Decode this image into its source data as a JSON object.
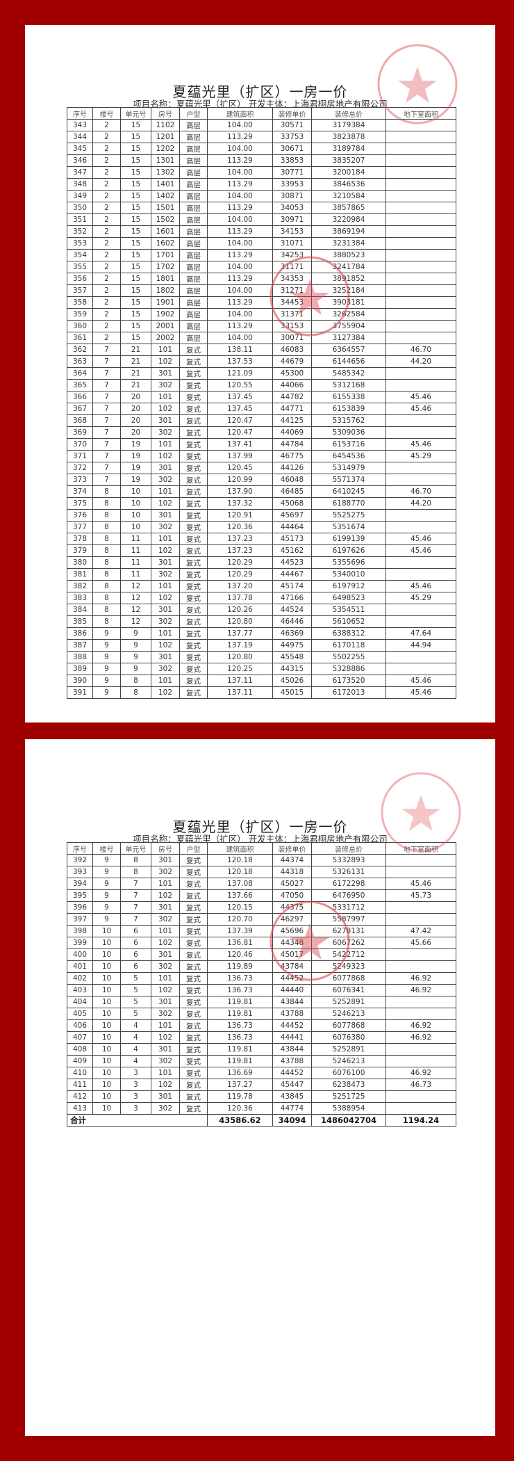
{
  "pages": [
    {
      "title": "夏蕴光里（扩区）一房一价",
      "subtitle": "项目名称：夏蕴光里（扩区）   开发主体：上海君栩房地产有限公司",
      "headers": [
        "序号",
        "楼号",
        "单元号",
        "房号",
        "户型",
        "建筑面积",
        "装修单价",
        "装修总价",
        "地下室面积"
      ],
      "rows": [
        [
          "343",
          "2",
          "15",
          "1102",
          "高层",
          "104.00",
          "30571",
          "3179384",
          ""
        ],
        [
          "344",
          "2",
          "15",
          "1201",
          "高层",
          "113.29",
          "33753",
          "3823878",
          ""
        ],
        [
          "345",
          "2",
          "15",
          "1202",
          "高层",
          "104.00",
          "30671",
          "3189784",
          ""
        ],
        [
          "346",
          "2",
          "15",
          "1301",
          "高层",
          "113.29",
          "33853",
          "3835207",
          ""
        ],
        [
          "347",
          "2",
          "15",
          "1302",
          "高层",
          "104.00",
          "30771",
          "3200184",
          ""
        ],
        [
          "348",
          "2",
          "15",
          "1401",
          "高层",
          "113.29",
          "33953",
          "3846536",
          ""
        ],
        [
          "349",
          "2",
          "15",
          "1402",
          "高层",
          "104.00",
          "30871",
          "3210584",
          ""
        ],
        [
          "350",
          "2",
          "15",
          "1501",
          "高层",
          "113.29",
          "34053",
          "3857865",
          ""
        ],
        [
          "351",
          "2",
          "15",
          "1502",
          "高层",
          "104.00",
          "30971",
          "3220984",
          ""
        ],
        [
          "352",
          "2",
          "15",
          "1601",
          "高层",
          "113.29",
          "34153",
          "3869194",
          ""
        ],
        [
          "353",
          "2",
          "15",
          "1602",
          "高层",
          "104.00",
          "31071",
          "3231384",
          ""
        ],
        [
          "354",
          "2",
          "15",
          "1701",
          "高层",
          "113.29",
          "34253",
          "3880523",
          ""
        ],
        [
          "355",
          "2",
          "15",
          "1702",
          "高层",
          "104.00",
          "31171",
          "3241784",
          ""
        ],
        [
          "356",
          "2",
          "15",
          "1801",
          "高层",
          "113.29",
          "34353",
          "3891852",
          ""
        ],
        [
          "357",
          "2",
          "15",
          "1802",
          "高层",
          "104.00",
          "31271",
          "3252184",
          ""
        ],
        [
          "358",
          "2",
          "15",
          "1901",
          "高层",
          "113.29",
          "34453",
          "3903181",
          ""
        ],
        [
          "359",
          "2",
          "15",
          "1902",
          "高层",
          "104.00",
          "31371",
          "3262584",
          ""
        ],
        [
          "360",
          "2",
          "15",
          "2001",
          "高层",
          "113.29",
          "33153",
          "3755904",
          ""
        ],
        [
          "361",
          "2",
          "15",
          "2002",
          "高层",
          "104.00",
          "30071",
          "3127384",
          ""
        ],
        [
          "362",
          "7",
          "21",
          "101",
          "复式",
          "138.11",
          "46083",
          "6364557",
          "46.70"
        ],
        [
          "363",
          "7",
          "21",
          "102",
          "复式",
          "137.53",
          "44679",
          "6144656",
          "44.20"
        ],
        [
          "364",
          "7",
          "21",
          "301",
          "复式",
          "121.09",
          "45300",
          "5485342",
          ""
        ],
        [
          "365",
          "7",
          "21",
          "302",
          "复式",
          "120.55",
          "44066",
          "5312168",
          ""
        ],
        [
          "366",
          "7",
          "20",
          "101",
          "复式",
          "137.45",
          "44782",
          "6155338",
          "45.46"
        ],
        [
          "367",
          "7",
          "20",
          "102",
          "复式",
          "137.45",
          "44771",
          "6153839",
          "45.46"
        ],
        [
          "368",
          "7",
          "20",
          "301",
          "复式",
          "120.47",
          "44125",
          "5315762",
          ""
        ],
        [
          "369",
          "7",
          "20",
          "302",
          "复式",
          "120.47",
          "44069",
          "5309036",
          ""
        ],
        [
          "370",
          "7",
          "19",
          "101",
          "复式",
          "137.41",
          "44784",
          "6153716",
          "45.46"
        ],
        [
          "371",
          "7",
          "19",
          "102",
          "复式",
          "137.99",
          "46775",
          "6454536",
          "45.29"
        ],
        [
          "372",
          "7",
          "19",
          "301",
          "复式",
          "120.45",
          "44126",
          "5314979",
          ""
        ],
        [
          "373",
          "7",
          "19",
          "302",
          "复式",
          "120.99",
          "46048",
          "5571374",
          ""
        ],
        [
          "374",
          "8",
          "10",
          "101",
          "复式",
          "137.90",
          "46485",
          "6410245",
          "46.70"
        ],
        [
          "375",
          "8",
          "10",
          "102",
          "复式",
          "137.32",
          "45068",
          "6188770",
          "44.20"
        ],
        [
          "376",
          "8",
          "10",
          "301",
          "复式",
          "120.91",
          "45697",
          "5525275",
          ""
        ],
        [
          "377",
          "8",
          "10",
          "302",
          "复式",
          "120.36",
          "44464",
          "5351674",
          ""
        ],
        [
          "378",
          "8",
          "11",
          "101",
          "复式",
          "137.23",
          "45173",
          "6199139",
          "45.46"
        ],
        [
          "379",
          "8",
          "11",
          "102",
          "复式",
          "137.23",
          "45162",
          "6197626",
          "45.46"
        ],
        [
          "380",
          "8",
          "11",
          "301",
          "复式",
          "120.29",
          "44523",
          "5355696",
          ""
        ],
        [
          "381",
          "8",
          "11",
          "302",
          "复式",
          "120.29",
          "44467",
          "5340010",
          ""
        ],
        [
          "382",
          "8",
          "12",
          "101",
          "复式",
          "137.20",
          "45174",
          "6197912",
          "45.46"
        ],
        [
          "383",
          "8",
          "12",
          "102",
          "复式",
          "137.78",
          "47166",
          "6498523",
          "45.29"
        ],
        [
          "384",
          "8",
          "12",
          "301",
          "复式",
          "120.26",
          "44524",
          "5354511",
          ""
        ],
        [
          "385",
          "8",
          "12",
          "302",
          "复式",
          "120.80",
          "46446",
          "5610652",
          ""
        ],
        [
          "386",
          "9",
          "9",
          "101",
          "复式",
          "137.77",
          "46369",
          "6388312",
          "47.64"
        ],
        [
          "387",
          "9",
          "9",
          "102",
          "复式",
          "137.19",
          "44975",
          "6170118",
          "44.94"
        ],
        [
          "388",
          "9",
          "9",
          "301",
          "复式",
          "120.80",
          "45548",
          "5502255",
          ""
        ],
        [
          "389",
          "9",
          "9",
          "302",
          "复式",
          "120.25",
          "44315",
          "5328886",
          ""
        ],
        [
          "390",
          "9",
          "8",
          "101",
          "复式",
          "137.11",
          "45026",
          "6173520",
          "45.46"
        ],
        [
          "391",
          "9",
          "8",
          "102",
          "复式",
          "137.11",
          "45015",
          "6172013",
          "45.46"
        ]
      ]
    },
    {
      "title": "夏蕴光里（扩区）一房一价",
      "subtitle": "项目名称：夏蕴光里（扩区）   开发主体：上海君栩房地产有限公司",
      "headers": [
        "序号",
        "楼号",
        "单元号",
        "房号",
        "户型",
        "建筑面积",
        "装修单价",
        "装修总价",
        "地下室面积"
      ],
      "rows": [
        [
          "392",
          "9",
          "8",
          "301",
          "复式",
          "120.18",
          "44374",
          "5332893",
          ""
        ],
        [
          "393",
          "9",
          "8",
          "302",
          "复式",
          "120.18",
          "44318",
          "5326131",
          ""
        ],
        [
          "394",
          "9",
          "7",
          "101",
          "复式",
          "137.08",
          "45027",
          "6172298",
          "45.46"
        ],
        [
          "395",
          "9",
          "7",
          "102",
          "复式",
          "137.66",
          "47050",
          "6476950",
          "45.73"
        ],
        [
          "396",
          "9",
          "7",
          "301",
          "复式",
          "120.15",
          "44375",
          "5331712",
          ""
        ],
        [
          "397",
          "9",
          "7",
          "302",
          "复式",
          "120.70",
          "46297",
          "5587997",
          ""
        ],
        [
          "398",
          "10",
          "6",
          "101",
          "复式",
          "137.39",
          "45696",
          "6278131",
          "47.42"
        ],
        [
          "399",
          "10",
          "6",
          "102",
          "复式",
          "136.81",
          "44348",
          "6067262",
          "45.66"
        ],
        [
          "400",
          "10",
          "6",
          "301",
          "复式",
          "120.46",
          "45017",
          "5422712",
          ""
        ],
        [
          "401",
          "10",
          "6",
          "302",
          "复式",
          "119.89",
          "43784",
          "5249323",
          ""
        ],
        [
          "402",
          "10",
          "5",
          "101",
          "复式",
          "136.73",
          "44452",
          "6077868",
          "46.92"
        ],
        [
          "403",
          "10",
          "5",
          "102",
          "复式",
          "136.73",
          "44440",
          "6076341",
          "46.92"
        ],
        [
          "404",
          "10",
          "5",
          "301",
          "复式",
          "119.81",
          "43844",
          "5252891",
          ""
        ],
        [
          "405",
          "10",
          "5",
          "302",
          "复式",
          "119.81",
          "43788",
          "5246213",
          ""
        ],
        [
          "406",
          "10",
          "4",
          "101",
          "复式",
          "136.73",
          "44452",
          "6077868",
          "46.92"
        ],
        [
          "407",
          "10",
          "4",
          "102",
          "复式",
          "136.73",
          "44441",
          "6076380",
          "46.92"
        ],
        [
          "408",
          "10",
          "4",
          "301",
          "复式",
          "119.81",
          "43844",
          "5252891",
          ""
        ],
        [
          "409",
          "10",
          "4",
          "302",
          "复式",
          "119.81",
          "43788",
          "5246213",
          ""
        ],
        [
          "410",
          "10",
          "3",
          "101",
          "复式",
          "136.69",
          "44452",
          "6076100",
          "46.92"
        ],
        [
          "411",
          "10",
          "3",
          "102",
          "复式",
          "137.27",
          "45447",
          "6238473",
          "46.73"
        ],
        [
          "412",
          "10",
          "3",
          "301",
          "复式",
          "119.78",
          "43845",
          "5251725",
          ""
        ],
        [
          "413",
          "10",
          "3",
          "302",
          "复式",
          "120.36",
          "44774",
          "5388954",
          ""
        ]
      ],
      "total": {
        "label": "合计",
        "area": "43586.62",
        "unit_price": "34094",
        "total_price": "1486042704",
        "basement": "1194.24"
      }
    }
  ],
  "colors": {
    "background": "#a00000",
    "stamp": "#d9434a"
  }
}
